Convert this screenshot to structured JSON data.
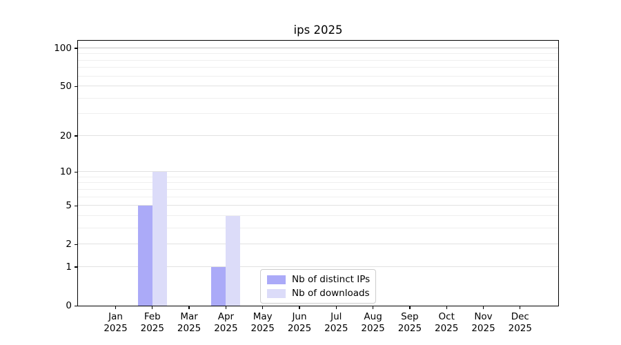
{
  "chart_data": {
    "type": "bar",
    "title": "ips 2025",
    "categories": [
      "Jan",
      "Feb",
      "Mar",
      "Apr",
      "May",
      "Jun",
      "Jul",
      "Aug",
      "Sep",
      "Oct",
      "Nov",
      "Dec"
    ],
    "category_year": "2025",
    "x_tick_labels": [
      [
        "Jan",
        "2025"
      ],
      [
        "Feb",
        "2025"
      ],
      [
        "Mar",
        "2025"
      ],
      [
        "Apr",
        "2025"
      ],
      [
        "May",
        "2025"
      ],
      [
        "Jun",
        "2025"
      ],
      [
        "Jul",
        "2025"
      ],
      [
        "Aug",
        "2025"
      ],
      [
        "Sep",
        "2025"
      ],
      [
        "Oct",
        "2025"
      ],
      [
        "Nov",
        "2025"
      ],
      [
        "Dec",
        "2025"
      ]
    ],
    "series": [
      {
        "name": "Nb of distinct IPs",
        "color": "#abaaf8",
        "values": [
          0,
          5,
          0,
          1,
          0,
          0,
          0,
          0,
          0,
          0,
          0,
          0
        ]
      },
      {
        "name": "Nb of downloads",
        "color": "#dcdcf9",
        "values": [
          0,
          10,
          0,
          4,
          0,
          0,
          0,
          0,
          0,
          0,
          0,
          0
        ]
      }
    ],
    "y_axis": {
      "scale": "log1p",
      "major_ticks": [
        0,
        1,
        2,
        5,
        10,
        20,
        50,
        100
      ],
      "major_tick_labels": [
        "0",
        "1",
        "2",
        "5",
        "10",
        "20",
        "50",
        "100"
      ],
      "minor_gridlines": [
        3,
        4,
        6,
        7,
        8,
        9,
        30,
        40,
        60,
        70,
        80,
        90
      ],
      "ylim": [
        0,
        115
      ]
    },
    "legend": {
      "position": "lower-center-inside",
      "entries": [
        "Nb of distinct IPs",
        "Nb of downloads"
      ]
    },
    "grid": true,
    "colors": {
      "spine": "#000000",
      "grid_major": "#e2e2e2",
      "grid_minor": "#efefef",
      "grid_top": "#c2c2c2",
      "background": "#ffffff"
    }
  }
}
